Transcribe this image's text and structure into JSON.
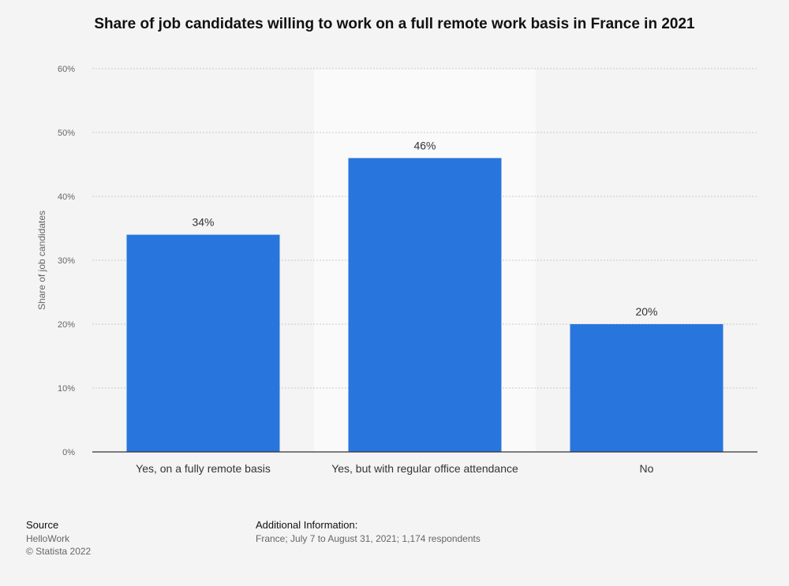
{
  "title": "Share of job candidates willing to work on a full remote work basis in France in 2021",
  "footer": {
    "source_label": "Source",
    "source_value": "HelloWork",
    "copyright": "© Statista 2022",
    "additional_label": "Additional Information:",
    "additional_value": "France; July 7 to August 31, 2021; 1,174 respondents"
  },
  "colors": {
    "bar": "#2876dd",
    "highlight": "#fafafa",
    "grid": "#c8c8c8",
    "axis": "#333333"
  },
  "chart_data": {
    "type": "bar",
    "title": "Share of job candidates willing to work on a full remote work basis in France in 2021",
    "ylabel": "Share of job candidates",
    "xlabel": "",
    "categories": [
      "Yes, on a fully remote basis",
      "Yes, but with regular office attendance",
      "No"
    ],
    "values": [
      34,
      46,
      20
    ],
    "value_labels": [
      "34%",
      "46%",
      "20%"
    ],
    "ylim": [
      0,
      60
    ],
    "yticks": [
      0,
      10,
      20,
      30,
      40,
      50,
      60
    ],
    "ytick_labels": [
      "0%",
      "10%",
      "20%",
      "30%",
      "40%",
      "50%",
      "60%"
    ],
    "highlighted_category": 1,
    "grid": true
  }
}
